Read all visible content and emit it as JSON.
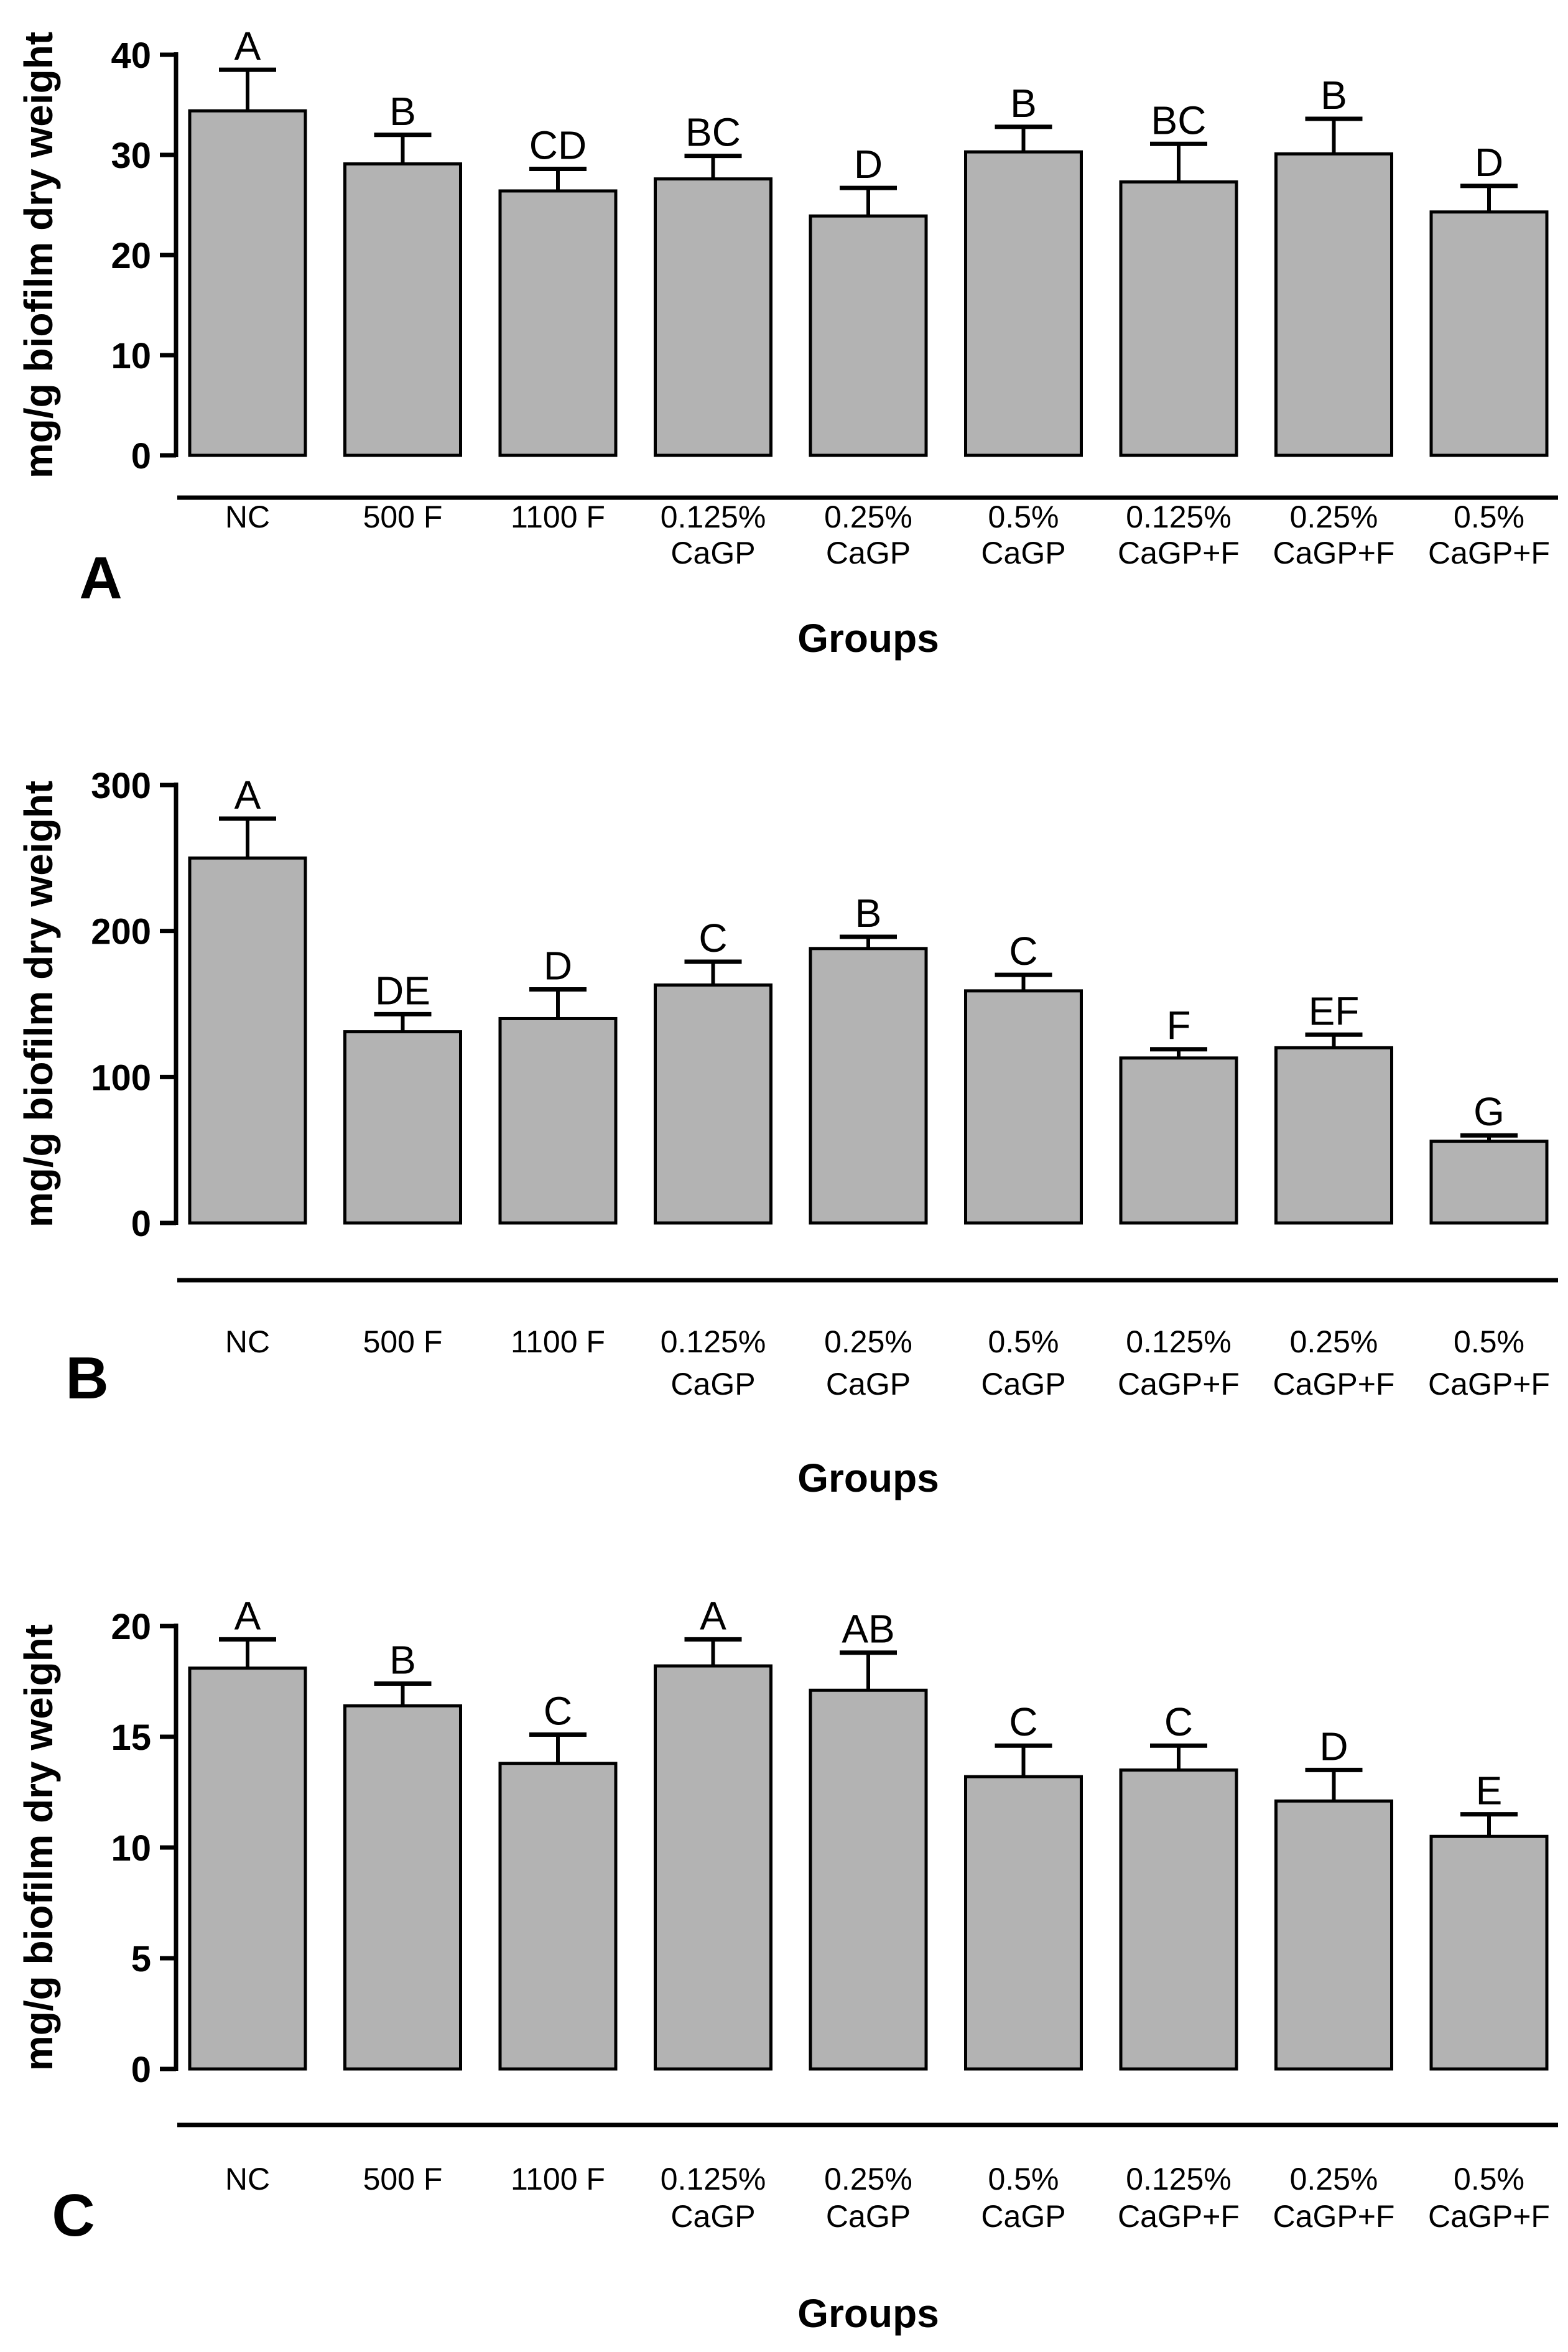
{
  "figure": {
    "background": "#ffffff",
    "bar_fill": "#b3b3b3",
    "stroke_color": "#000000",
    "panels": [
      "A",
      "B",
      "C"
    ]
  },
  "chart_data": [
    {
      "type": "bar",
      "panel_label": "A",
      "title": "",
      "ylabel": "mg/g biofilm dry weight",
      "xlabel": "Groups",
      "categories": [
        "NC",
        "500 F",
        "1100 F",
        "0.125% CaGP",
        "0.25% CaGP",
        "0.5% CaGP",
        "0.125% CaGP+F",
        "0.25% CaGP+F",
        "0.5% CaGP+F"
      ],
      "category_lines": [
        [
          "NC"
        ],
        [
          "500 F"
        ],
        [
          "1100 F"
        ],
        [
          "0.125%",
          "CaGP"
        ],
        [
          "0.25%",
          "CaGP"
        ],
        [
          "0.5%",
          "CaGP"
        ],
        [
          "0.125%",
          "CaGP+F"
        ],
        [
          "0.25%",
          "CaGP+F"
        ],
        [
          "0.5%",
          "CaGP+F"
        ]
      ],
      "values": [
        34.4,
        29.1,
        26.4,
        27.6,
        23.9,
        30.3,
        27.3,
        30.1,
        24.3
      ],
      "errors": [
        4.1,
        2.9,
        2.2,
        2.3,
        2.8,
        2.5,
        3.8,
        3.5,
        2.6
      ],
      "sig_letters": [
        "A",
        "B",
        "CD",
        "BC",
        "D",
        "B",
        "BC",
        "B",
        "D"
      ],
      "ylim": [
        0,
        40
      ],
      "yticks": [
        0,
        10,
        20,
        30,
        40
      ],
      "grid": false,
      "legend": "none"
    },
    {
      "type": "bar",
      "panel_label": "B",
      "title": "",
      "ylabel": "mg/g biofilm dry weight",
      "xlabel": "Groups",
      "categories": [
        "NC",
        "500 F",
        "1100 F",
        "0.125% CaGP",
        "0.25% CaGP",
        "0.5% CaGP",
        "0.125% CaGP+F",
        "0.25% CaGP+F",
        "0.5% CaGP+F"
      ],
      "category_lines": [
        [
          "NC"
        ],
        [
          "500 F"
        ],
        [
          "1100 F"
        ],
        [
          "0.125%",
          "CaGP"
        ],
        [
          "0.25%",
          "CaGP"
        ],
        [
          "0.5%",
          "CaGP"
        ],
        [
          "0.125%",
          "CaGP+F"
        ],
        [
          "0.25%",
          "CaGP+F"
        ],
        [
          "0.5%",
          "CaGP+F"
        ]
      ],
      "values": [
        250,
        131,
        140,
        163,
        188,
        159,
        113,
        120,
        56
      ],
      "errors": [
        27,
        12,
        20,
        16,
        8,
        11,
        6,
        9,
        4
      ],
      "sig_letters": [
        "A",
        "DE",
        "D",
        "C",
        "B",
        "C",
        "F",
        "EF",
        "G"
      ],
      "ylim": [
        0,
        300
      ],
      "yticks": [
        0,
        100,
        200,
        300
      ],
      "grid": false,
      "legend": "none"
    },
    {
      "type": "bar",
      "panel_label": "C",
      "title": "",
      "ylabel": "mg/g biofilm dry weight",
      "xlabel": "Groups",
      "categories": [
        "NC",
        "500 F",
        "1100 F",
        "0.125% CaGP",
        "0.25% CaGP",
        "0.5% CaGP",
        "0.125% CaGP+F",
        "0.25% CaGP+F",
        "0.5% CaGP+F"
      ],
      "category_lines": [
        [
          "NC"
        ],
        [
          "500 F"
        ],
        [
          "1100 F"
        ],
        [
          "0.125%",
          "CaGP"
        ],
        [
          "0.25%",
          "CaGP"
        ],
        [
          "0.5%",
          "CaGP"
        ],
        [
          "0.125%",
          "CaGP+F"
        ],
        [
          "0.25%",
          "CaGP+F"
        ],
        [
          "0.5%",
          "CaGP+F"
        ]
      ],
      "values": [
        18.1,
        16.4,
        13.8,
        18.2,
        17.1,
        13.2,
        13.5,
        12.1,
        10.5
      ],
      "errors": [
        1.3,
        1.0,
        1.3,
        1.2,
        1.7,
        1.4,
        1.1,
        1.4,
        1.0
      ],
      "sig_letters": [
        "A",
        "B",
        "C",
        "A",
        "AB",
        "C",
        "C",
        "D",
        "E"
      ],
      "ylim": [
        0,
        20
      ],
      "yticks": [
        0,
        5,
        10,
        15,
        20
      ],
      "grid": false,
      "legend": "none"
    }
  ]
}
